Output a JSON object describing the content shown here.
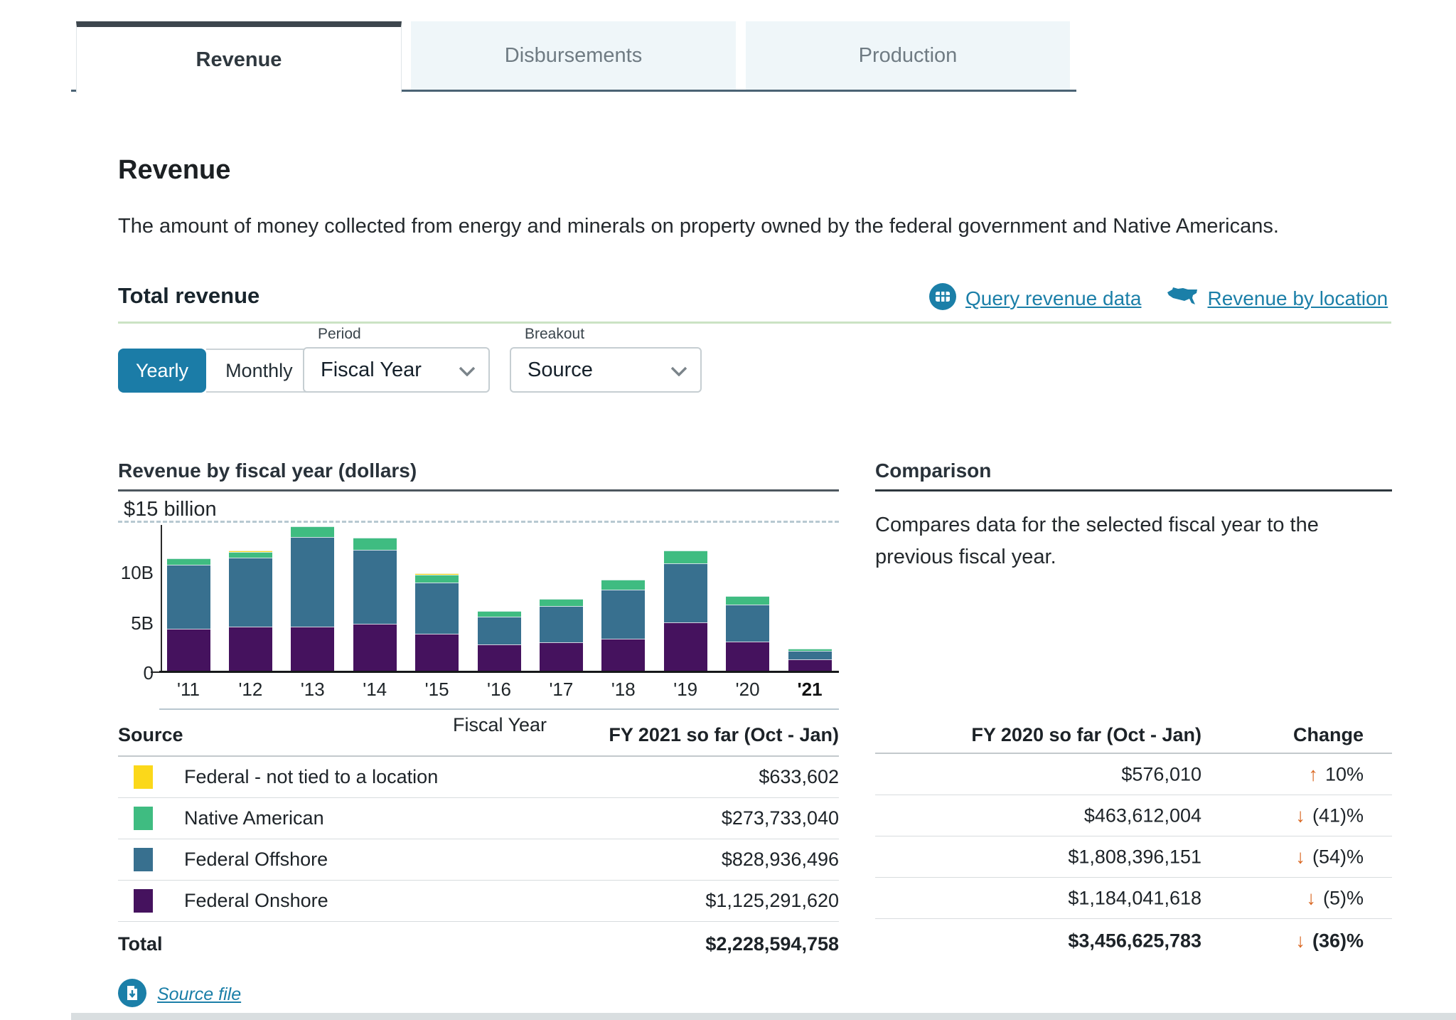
{
  "tabs": [
    {
      "label": "Revenue",
      "active": true
    },
    {
      "label": "Disbursements",
      "active": false
    },
    {
      "label": "Production",
      "active": false
    }
  ],
  "page": {
    "title": "Revenue",
    "description": "The amount of money collected from energy and minerals on property owned by the federal government and Native Americans."
  },
  "total_revenue": {
    "heading": "Total revenue",
    "links": [
      {
        "label": "Query revenue data",
        "icon": "data-table-icon"
      },
      {
        "label": "Revenue by location",
        "icon": "us-map-icon"
      }
    ]
  },
  "controls": {
    "toggle": {
      "selected": "Yearly",
      "options": [
        "Yearly",
        "Monthly"
      ]
    },
    "period": {
      "label": "Period",
      "value": "Fiscal Year"
    },
    "breakout": {
      "label": "Breakout",
      "value": "Source"
    }
  },
  "chart_data": {
    "type": "bar",
    "stacked": true,
    "title": "Revenue by fiscal year (dollars)",
    "xlabel": "Fiscal Year",
    "unit": "billions of dollars",
    "ylim": [
      0,
      15
    ],
    "y_max_label": "$15 billion",
    "yticks": [
      {
        "value": 0,
        "label": "0"
      },
      {
        "value": 5,
        "label": "5B"
      },
      {
        "value": 10,
        "label": "10B"
      }
    ],
    "categories": [
      "'11",
      "'12",
      "'13",
      "'14",
      "'15",
      "'16",
      "'17",
      "'18",
      "'19",
      "'20",
      "'21"
    ],
    "selected_category": "'21",
    "grid": "single dashed reference line at 15 billion",
    "legend_position": "table-below-chart",
    "series": [
      {
        "name": "Federal Onshore",
        "color": "#45125e",
        "values": [
          4.2,
          4.4,
          4.4,
          4.7,
          3.7,
          2.6,
          2.85,
          3.2,
          4.8,
          2.9,
          1.13
        ]
      },
      {
        "name": "Federal Offshore",
        "color": "#38708f",
        "values": [
          6.4,
          6.9,
          8.95,
          7.4,
          5.1,
          2.8,
          3.65,
          4.9,
          5.95,
          3.7,
          0.83
        ]
      },
      {
        "name": "Native American",
        "color": "#3fbc81",
        "values": [
          0.6,
          0.55,
          1.05,
          1.2,
          0.8,
          0.6,
          0.7,
          1.0,
          1.25,
          0.9,
          0.27
        ]
      },
      {
        "name": "Federal - not tied to a location",
        "color": "#fbd81a",
        "values": [
          0,
          0.15,
          0,
          0,
          0.15,
          0,
          0,
          0,
          0,
          0,
          0
        ]
      }
    ]
  },
  "comparison": {
    "heading": "Comparison",
    "description": "Compares data for the selected fiscal year to the previous fiscal year."
  },
  "table": {
    "headers": {
      "source": "Source",
      "current": "FY 2021 so far (Oct - Jan)",
      "previous": "FY 2020 so far (Oct - Jan)",
      "change": "Change"
    },
    "rows": [
      {
        "source": "Federal - not tied to a location",
        "color": "#fbd81a",
        "current": "$633,602",
        "previous": "$576,010",
        "change": "10%",
        "direction": "up"
      },
      {
        "source": "Native American",
        "color": "#3fbc81",
        "current": "$273,733,040",
        "previous": "$463,612,004",
        "change": "(41)%",
        "direction": "down"
      },
      {
        "source": "Federal Offshore",
        "color": "#38708f",
        "current": "$828,936,496",
        "previous": "$1,808,396,151",
        "change": "(54)%",
        "direction": "down"
      },
      {
        "source": "Federal Onshore",
        "color": "#45125e",
        "current": "$1,125,291,620",
        "previous": "$1,184,041,618",
        "change": "(5)%",
        "direction": "down"
      }
    ],
    "total": {
      "label": "Total",
      "current": "$2,228,594,758",
      "previous": "$3,456,625,783",
      "change": "(36)%",
      "direction": "down"
    }
  },
  "footer": {
    "source_file": "Source file"
  },
  "colors": {
    "accent": "#1b7ca7",
    "link": "#1b7fa8",
    "change_arrow": "#d9651f"
  }
}
